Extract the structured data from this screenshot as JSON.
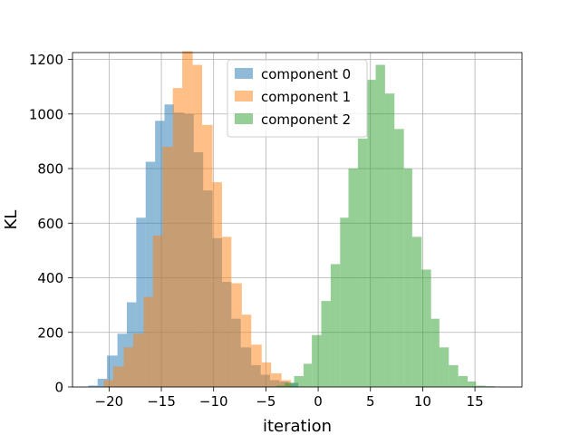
{
  "chart_data": {
    "type": "histogram",
    "xlabel": "iteration",
    "ylabel": "KL",
    "xlim": [
      -23.5,
      19.5
    ],
    "ylim": [
      0,
      1225
    ],
    "xticks": [
      -20,
      -15,
      -10,
      -5,
      0,
      5,
      10,
      15
    ],
    "yticks": [
      0,
      200,
      400,
      600,
      800,
      1000,
      1200
    ],
    "grid": true,
    "legend_position": "upper center",
    "series": [
      {
        "name": "component 0",
        "color": "#1f77b4",
        "alpha": 0.5,
        "bins": [
          [
            -22.0,
            -21.1,
            5
          ],
          [
            -21.1,
            -20.2,
            30
          ],
          [
            -20.2,
            -19.2,
            115
          ],
          [
            -19.2,
            -18.3,
            195
          ],
          [
            -18.3,
            -17.4,
            310
          ],
          [
            -17.4,
            -16.5,
            620
          ],
          [
            -16.5,
            -15.6,
            825
          ],
          [
            -15.6,
            -14.7,
            975
          ],
          [
            -14.7,
            -13.8,
            1035
          ],
          [
            -13.8,
            -12.8,
            1005
          ],
          [
            -12.8,
            -11.9,
            1000
          ],
          [
            -11.9,
            -11.0,
            860
          ],
          [
            -11.0,
            -10.1,
            720
          ],
          [
            -10.1,
            -9.2,
            545
          ],
          [
            -9.2,
            -8.3,
            385
          ],
          [
            -8.3,
            -7.4,
            250
          ],
          [
            -7.4,
            -6.4,
            145
          ],
          [
            -6.4,
            -5.5,
            80
          ],
          [
            -5.5,
            -4.6,
            45
          ],
          [
            -4.6,
            -3.7,
            25
          ],
          [
            -3.7,
            -2.8,
            20
          ],
          [
            -2.8,
            -1.9,
            15
          ]
        ]
      },
      {
        "name": "component 1",
        "color": "#ff7f0e",
        "alpha": 0.5,
        "bins": [
          [
            -20.5,
            -19.6,
            25
          ],
          [
            -19.6,
            -18.6,
            75
          ],
          [
            -18.6,
            -17.7,
            145
          ],
          [
            -17.7,
            -16.7,
            195
          ],
          [
            -16.7,
            -15.8,
            330
          ],
          [
            -15.8,
            -14.9,
            555
          ],
          [
            -14.9,
            -13.9,
            880
          ],
          [
            -13.9,
            -13.0,
            1095
          ],
          [
            -13.0,
            -12.0,
            1230
          ],
          [
            -12.0,
            -11.1,
            1180
          ],
          [
            -11.1,
            -10.1,
            960
          ],
          [
            -10.1,
            -9.2,
            750
          ],
          [
            -9.2,
            -8.3,
            550
          ],
          [
            -8.3,
            -7.3,
            380
          ],
          [
            -7.3,
            -6.4,
            265
          ],
          [
            -6.4,
            -5.4,
            155
          ],
          [
            -5.4,
            -4.5,
            90
          ],
          [
            -4.5,
            -3.5,
            50
          ],
          [
            -3.5,
            -2.6,
            25
          ]
        ]
      },
      {
        "name": "component 2",
        "color": "#2ca02c",
        "alpha": 0.5,
        "bins": [
          [
            -4.0,
            -3.2,
            5
          ],
          [
            -3.2,
            -2.3,
            15
          ],
          [
            -2.3,
            -1.4,
            40
          ],
          [
            -1.4,
            -0.6,
            85
          ],
          [
            -0.6,
            0.3,
            190
          ],
          [
            0.3,
            1.2,
            315
          ],
          [
            1.2,
            2.1,
            450
          ],
          [
            2.1,
            2.9,
            620
          ],
          [
            2.9,
            3.8,
            800
          ],
          [
            3.8,
            4.7,
            910
          ],
          [
            4.7,
            5.5,
            1125
          ],
          [
            5.5,
            6.4,
            1180
          ],
          [
            6.4,
            7.3,
            1075
          ],
          [
            7.3,
            8.2,
            945
          ],
          [
            8.2,
            9.0,
            800
          ],
          [
            9.0,
            9.9,
            550
          ],
          [
            9.9,
            10.8,
            430
          ],
          [
            10.8,
            11.6,
            250
          ],
          [
            11.6,
            12.5,
            145
          ],
          [
            12.5,
            13.4,
            80
          ],
          [
            13.4,
            14.3,
            40
          ],
          [
            14.3,
            15.1,
            20
          ],
          [
            15.1,
            16.0,
            5
          ],
          [
            16.0,
            16.9,
            3
          ]
        ]
      }
    ]
  }
}
